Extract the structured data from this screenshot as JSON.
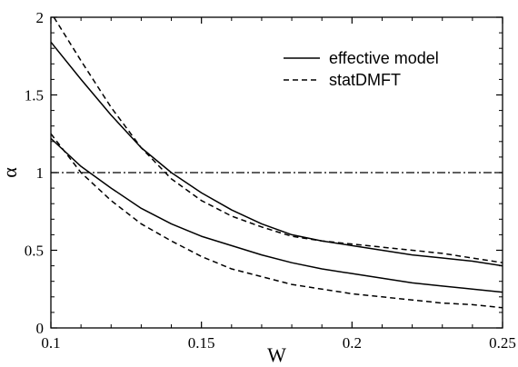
{
  "chart_data": {
    "type": "line",
    "title": "",
    "xlabel": "W",
    "ylabel": "α",
    "xlim": [
      0.1,
      0.25
    ],
    "ylim": [
      0,
      2
    ],
    "x_ticks": [
      "0.1",
      "0.15",
      "0.2",
      "0.25"
    ],
    "y_ticks": [
      "0",
      "0.5",
      "1",
      "1.5",
      "2"
    ],
    "reference_line": {
      "y": 1,
      "style": "dash-dot"
    },
    "legend": {
      "position": "top-right",
      "entries": [
        {
          "label": "effective model",
          "style": "solid"
        },
        {
          "label": "statDMFT",
          "style": "dashed"
        }
      ]
    },
    "series": [
      {
        "name": "effective model",
        "style": "solid",
        "x": [
          0.1,
          0.11,
          0.12,
          0.13,
          0.14,
          0.15,
          0.16,
          0.17,
          0.18,
          0.19,
          0.2,
          0.21,
          0.22,
          0.23,
          0.24,
          0.25
        ],
        "y": [
          1.84,
          1.6,
          1.37,
          1.16,
          1.0,
          0.87,
          0.76,
          0.67,
          0.6,
          0.56,
          0.53,
          0.5,
          0.47,
          0.45,
          0.43,
          0.4
        ]
      },
      {
        "name": "statDMFT",
        "style": "dashed",
        "x": [
          0.101,
          0.11,
          0.12,
          0.13,
          0.14,
          0.15,
          0.16,
          0.17,
          0.18,
          0.19,
          0.2,
          0.21,
          0.22,
          0.23,
          0.24,
          0.25
        ],
        "y": [
          2.0,
          1.72,
          1.42,
          1.16,
          0.96,
          0.82,
          0.72,
          0.65,
          0.59,
          0.56,
          0.54,
          0.52,
          0.5,
          0.48,
          0.45,
          0.42
        ]
      },
      {
        "name": "effective model",
        "style": "solid",
        "x": [
          0.1,
          0.11,
          0.12,
          0.13,
          0.14,
          0.15,
          0.16,
          0.17,
          0.18,
          0.19,
          0.2,
          0.21,
          0.22,
          0.23,
          0.24,
          0.25
        ],
        "y": [
          1.22,
          1.04,
          0.9,
          0.77,
          0.67,
          0.59,
          0.53,
          0.47,
          0.42,
          0.38,
          0.35,
          0.32,
          0.29,
          0.27,
          0.25,
          0.23
        ]
      },
      {
        "name": "statDMFT",
        "style": "dashed",
        "x": [
          0.1,
          0.11,
          0.12,
          0.13,
          0.14,
          0.15,
          0.16,
          0.17,
          0.18,
          0.19,
          0.2,
          0.21,
          0.22,
          0.23,
          0.24,
          0.25
        ],
        "y": [
          1.25,
          1.0,
          0.82,
          0.67,
          0.56,
          0.46,
          0.38,
          0.33,
          0.28,
          0.25,
          0.22,
          0.2,
          0.18,
          0.16,
          0.15,
          0.13
        ]
      }
    ]
  }
}
